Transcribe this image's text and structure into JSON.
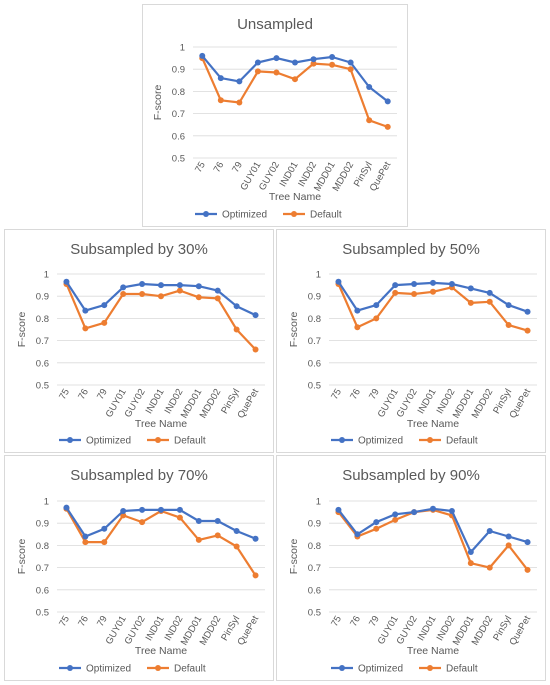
{
  "colors": {
    "optimized": "#4472C4",
    "default": "#ED7D31"
  },
  "chart_data": [
    {
      "type": "line",
      "title": "Unsampled",
      "xlabel": "Tree Name",
      "ylabel": "F-score",
      "ylim": [
        0.5,
        1
      ],
      "yticks": [
        "0.5",
        "0.6",
        "0.7",
        "0.8",
        "0.9",
        "1"
      ],
      "categories": [
        "75",
        "76",
        "79",
        "GUY01",
        "GUY02",
        "IND01",
        "IND02",
        "MDD01",
        "MDD02",
        "PinSyl",
        "QuePet"
      ],
      "series": [
        {
          "name": "Optimized",
          "values": [
            0.96,
            0.86,
            0.845,
            0.93,
            0.95,
            0.93,
            0.945,
            0.955,
            0.93,
            0.82,
            0.755
          ]
        },
        {
          "name": "Default",
          "values": [
            0.95,
            0.76,
            0.75,
            0.89,
            0.885,
            0.855,
            0.925,
            0.92,
            0.9,
            0.67,
            0.64
          ]
        }
      ],
      "legend": "bottom",
      "grid": true
    },
    {
      "type": "line",
      "title": "Subsampled by 30%",
      "xlabel": "Tree Name",
      "ylabel": "F-score",
      "ylim": [
        0.5,
        1
      ],
      "yticks": [
        "0.5",
        "0.6",
        "0.7",
        "0.8",
        "0.9",
        "1"
      ],
      "categories": [
        "75",
        "76",
        "79",
        "GUY01",
        "GUY02",
        "IND01",
        "IND02",
        "MDD01",
        "MDD02",
        "PinSyl",
        "QuePet"
      ],
      "series": [
        {
          "name": "Optimized",
          "values": [
            0.965,
            0.835,
            0.86,
            0.94,
            0.955,
            0.95,
            0.95,
            0.945,
            0.925,
            0.855,
            0.815
          ]
        },
        {
          "name": "Default",
          "values": [
            0.955,
            0.755,
            0.78,
            0.91,
            0.91,
            0.9,
            0.925,
            0.895,
            0.89,
            0.75,
            0.66
          ]
        }
      ],
      "legend": "bottom",
      "grid": true
    },
    {
      "type": "line",
      "title": "Subsampled by 50%",
      "xlabel": "Tree Name",
      "ylabel": "F-score",
      "ylim": [
        0.5,
        1
      ],
      "yticks": [
        "0.5",
        "0.6",
        "0.7",
        "0.8",
        "0.9",
        "1"
      ],
      "categories": [
        "75",
        "76",
        "79",
        "GUY01",
        "GUY02",
        "IND01",
        "IND02",
        "MDD01",
        "MDD02",
        "PinSyl",
        "QuePet"
      ],
      "series": [
        {
          "name": "Optimized",
          "values": [
            0.965,
            0.835,
            0.86,
            0.95,
            0.955,
            0.96,
            0.955,
            0.935,
            0.915,
            0.86,
            0.83
          ]
        },
        {
          "name": "Default",
          "values": [
            0.955,
            0.76,
            0.8,
            0.915,
            0.91,
            0.92,
            0.94,
            0.87,
            0.875,
            0.77,
            0.745
          ]
        }
      ],
      "legend": "bottom",
      "grid": true
    },
    {
      "type": "line",
      "title": "Subsampled by 70%",
      "xlabel": "Tree Name",
      "ylabel": "F-score",
      "ylim": [
        0.5,
        1
      ],
      "yticks": [
        "0.5",
        "0.6",
        "0.7",
        "0.8",
        "0.9",
        "1"
      ],
      "categories": [
        "75",
        "76",
        "79",
        "GUY01",
        "GUY02",
        "IND01",
        "IND02",
        "MDD01",
        "MDD02",
        "PinSyl",
        "QuePet"
      ],
      "series": [
        {
          "name": "Optimized",
          "values": [
            0.97,
            0.84,
            0.875,
            0.955,
            0.96,
            0.96,
            0.96,
            0.91,
            0.91,
            0.865,
            0.83
          ]
        },
        {
          "name": "Default",
          "values": [
            0.965,
            0.815,
            0.815,
            0.935,
            0.905,
            0.955,
            0.925,
            0.825,
            0.845,
            0.795,
            0.665
          ]
        }
      ],
      "legend": "bottom",
      "grid": true
    },
    {
      "type": "line",
      "title": "Subsampled by 90%",
      "xlabel": "Tree Name",
      "ylabel": "F-score",
      "ylim": [
        0.5,
        1
      ],
      "yticks": [
        "0.5",
        "0.6",
        "0.7",
        "0.8",
        "0.9",
        "1"
      ],
      "categories": [
        "75",
        "76",
        "79",
        "GUY01",
        "GUY02",
        "IND01",
        "IND02",
        "MDD01",
        "MDD02",
        "PinSyl",
        "QuePet"
      ],
      "series": [
        {
          "name": "Optimized",
          "values": [
            0.96,
            0.85,
            0.905,
            0.94,
            0.95,
            0.965,
            0.955,
            0.77,
            0.865,
            0.84,
            0.815
          ]
        },
        {
          "name": "Default",
          "values": [
            0.95,
            0.84,
            0.875,
            0.915,
            0.95,
            0.96,
            0.935,
            0.72,
            0.7,
            0.8,
            0.69
          ]
        }
      ],
      "legend": "bottom",
      "grid": true
    }
  ]
}
